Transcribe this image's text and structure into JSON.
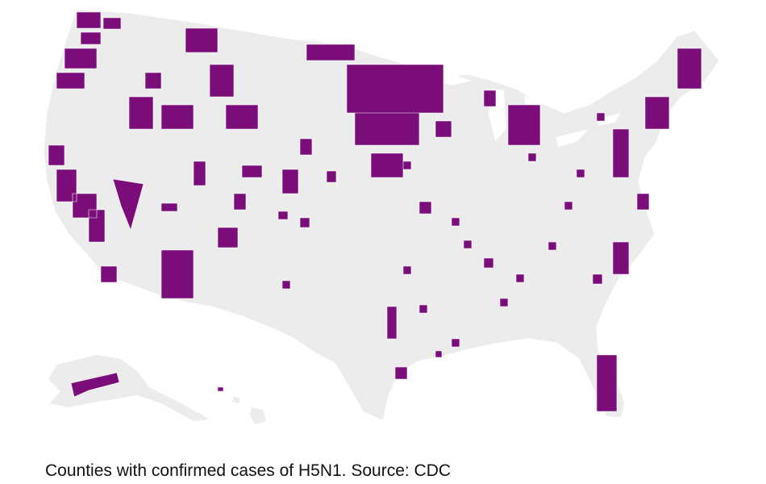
{
  "caption": "Counties with confirmed cases of H5N1. Source: CDC"
}
